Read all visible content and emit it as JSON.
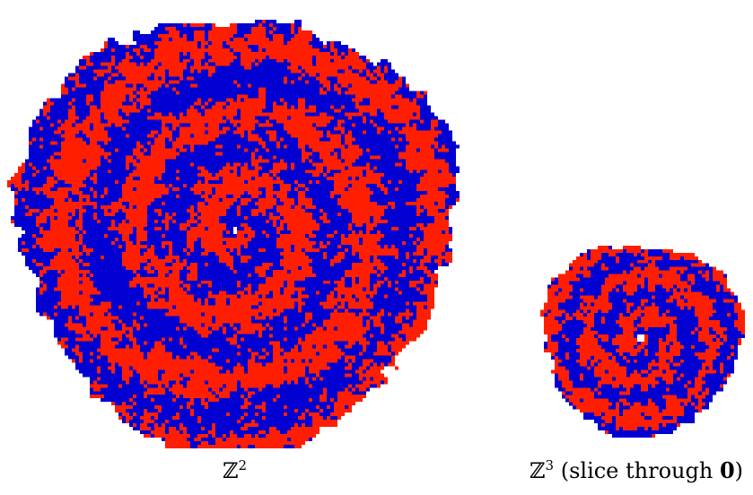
{
  "colors": {
    "red": "#ff1f00",
    "blue": "#0000d2",
    "origin": "#ffffff"
  },
  "panels": [
    {
      "id": "z2",
      "lattice": "ℤ",
      "dimension": "2",
      "caption_suffix": "",
      "caption_bold": "",
      "caption_end": ""
    },
    {
      "id": "z3",
      "lattice": "ℤ",
      "dimension": "3",
      "caption_suffix": " (slice through ",
      "caption_bold": "0",
      "caption_end": ")"
    }
  ]
}
